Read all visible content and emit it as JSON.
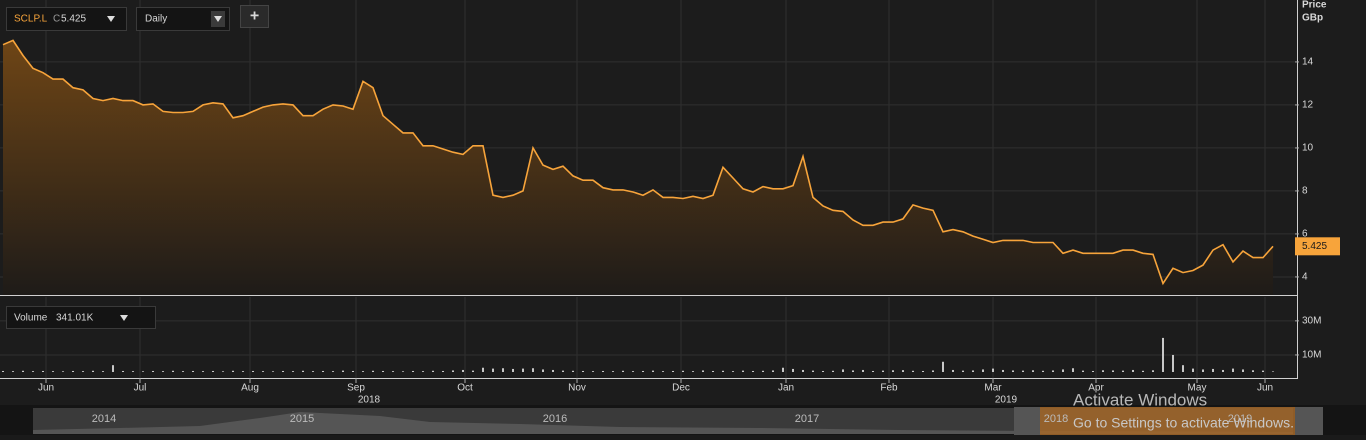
{
  "toolbar": {
    "symbol": "SCLP.L",
    "close_prefix": "C",
    "close": "5.425",
    "interval": "Daily",
    "add": "+"
  },
  "chart_data": [
    {
      "type": "area",
      "axis_title": "Price",
      "axis_unit": "GBp",
      "color": "#f7a43b",
      "series": [
        {
          "name": "SCLP.L",
          "color": "#f7a43b",
          "values": [
            14.8,
            15.0,
            14.3,
            13.7,
            13.5,
            13.2,
            13.2,
            12.8,
            12.7,
            12.3,
            12.2,
            12.3,
            12.2,
            12.2,
            12.0,
            12.05,
            11.7,
            11.65,
            11.65,
            11.7,
            12.0,
            12.1,
            12.05,
            11.4,
            11.5,
            11.7,
            11.9,
            12.0,
            12.05,
            12.0,
            11.5,
            11.5,
            11.8,
            12.0,
            11.95,
            11.8,
            13.1,
            12.8,
            11.5,
            11.1,
            10.7,
            10.7,
            10.1,
            10.1,
            9.95,
            9.8,
            9.7,
            10.1,
            10.1,
            7.8,
            7.7,
            7.8,
            8.0,
            10.0,
            9.2,
            9.0,
            9.15,
            8.7,
            8.5,
            8.5,
            8.15,
            8.05,
            8.05,
            7.95,
            7.8,
            8.05,
            7.7,
            7.7,
            7.65,
            7.75,
            7.65,
            7.8,
            9.1,
            8.6,
            8.1,
            7.95,
            8.2,
            8.1,
            8.1,
            8.25,
            9.6,
            7.7,
            7.3,
            7.1,
            7.05,
            6.65,
            6.4,
            6.4,
            6.55,
            6.55,
            6.7,
            7.35,
            7.2,
            7.1,
            6.1,
            6.2,
            6.1,
            5.9,
            5.75,
            5.6,
            5.7,
            5.7,
            5.7,
            5.6,
            5.6,
            5.6,
            5.1,
            5.25,
            5.1,
            5.1,
            5.1,
            5.1,
            5.25,
            5.25,
            5.1,
            5.05,
            3.7,
            4.4,
            4.2,
            4.3,
            4.55,
            5.25,
            5.5,
            4.7,
            5.2,
            4.9,
            4.9,
            5.425
          ]
        }
      ],
      "xlim": [
        -0.3,
        129.2
      ],
      "ylim": [
        3.16,
        16.88
      ],
      "yticks": [
        4,
        6,
        8,
        10,
        12,
        14
      ],
      "grid": true
    },
    {
      "type": "bar",
      "legend": "Volume",
      "legend_value": "341.01K",
      "color": "#c8c8c8",
      "values": [
        0.6,
        0.5,
        0.7,
        0.5,
        0.6,
        0.5,
        0.4,
        0.6,
        0.5,
        0.7,
        0.5,
        4,
        0.6,
        0.5,
        0.4,
        0.6,
        0.5,
        0.7,
        0.5,
        0.6,
        0.5,
        0.6,
        0.4,
        0.7,
        0.5,
        0.6,
        0.5,
        0.4,
        0.6,
        0.5,
        0.7,
        0.5,
        0.6,
        0.5,
        0.8,
        0.6,
        0.5,
        0.7,
        0.6,
        0.5,
        0.4,
        0.6,
        0.5,
        0.7,
        0.6,
        0.9,
        1.2,
        0.8,
        2.5,
        2,
        2.2,
        1.8,
        2,
        2.2,
        1.5,
        1.2,
        0.8,
        0.7,
        0.6,
        0.5,
        0.6,
        0.5,
        0.7,
        0.5,
        0.6,
        0.8,
        0.5,
        0.6,
        0.7,
        0.5,
        0.9,
        0.6,
        0.7,
        0.5,
        0.8,
        0.6,
        0.7,
        0.9,
        2.5,
        1.8,
        1.2,
        0.8,
        0.6,
        0.7,
        1.5,
        0.9,
        1.2,
        0.6,
        0.8,
        1,
        1.1,
        0.7,
        0.6,
        0.9,
        6,
        1.2,
        0.8,
        0.9,
        1.5,
        2,
        1.2,
        0.9,
        0.8,
        1,
        0.7,
        0.9,
        1.5,
        2.2,
        0.8,
        0.6,
        1,
        0.9,
        0.8,
        1.2,
        0.7,
        1,
        20,
        10,
        4,
        2,
        1.5,
        1.8,
        1.2,
        2,
        1.5,
        1,
        0.8,
        0.34101
      ],
      "xlim": [
        -0.3,
        129.2
      ],
      "ylim": [
        0,
        44
      ],
      "yticks": [
        {
          "value": 10,
          "label": "10M"
        },
        {
          "value": 30,
          "label": "30M"
        }
      ],
      "xticks": [
        {
          "value": 4.3,
          "label": "Jun"
        },
        {
          "value": 13.7,
          "label": "Jul"
        },
        {
          "value": 24.7,
          "label": "Aug"
        },
        {
          "value": 35.3,
          "label": "Sep"
        },
        {
          "value": 46.2,
          "label": "Oct"
        },
        {
          "value": 57.4,
          "label": "Nov"
        },
        {
          "value": 67.8,
          "label": "Dec"
        },
        {
          "value": 78.3,
          "label": "Jan"
        },
        {
          "value": 88.6,
          "label": "Feb"
        },
        {
          "value": 99,
          "label": "Mar"
        },
        {
          "value": 109.3,
          "label": "Apr"
        },
        {
          "value": 119.4,
          "label": "May"
        },
        {
          "value": 126.2,
          "label": "Jun"
        }
      ],
      "year_labels": [
        {
          "value": 36.6,
          "label": "2018"
        },
        {
          "value": 100.3,
          "label": "2019"
        }
      ],
      "grid": true
    }
  ],
  "navigator": {
    "years": [
      "2014",
      "2015",
      "2016",
      "2017",
      "2018",
      "2019"
    ]
  },
  "watermark": {
    "title": "Activate Windows",
    "subtitle": "Go to Settings to activate Windows."
  }
}
